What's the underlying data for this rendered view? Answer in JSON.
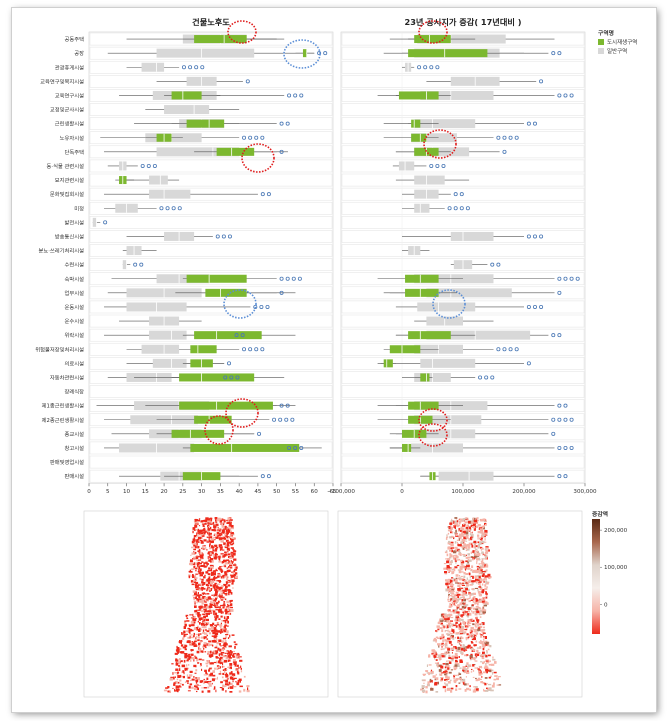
{
  "chart_data": {
    "type": "boxplot",
    "categories": [
      "공동주택",
      "공장",
      "관광휴게시설",
      "교육연구및복지시설",
      "교육연구시설",
      "교정및군사시설",
      "근린생활시설",
      "노유자시설",
      "단독주택",
      "동·식물 관련시설",
      "묘지관련시설",
      "문화및집회시설",
      "미정",
      "발전시설",
      "방송통신시설",
      "분뇨·쓰레기처리시설",
      "수련시설",
      "숙박시설",
      "업무시설",
      "운동시설",
      "운수시설",
      "위락시설",
      "위험물저장및처리시설",
      "의료시설",
      "자동차관련시설",
      "장례식장",
      "제1종근린생활시설",
      "제2종근린생활시설",
      "종교시설",
      "창고시설",
      "판매및영업시설",
      "판매시설"
    ],
    "legend": {
      "title": "구역명",
      "items": [
        {
          "name": "도시재생구역",
          "color": "#7cb82f"
        },
        {
          "name": "일반구역",
          "color": "#d8d8d8"
        }
      ]
    },
    "panels": [
      {
        "title": "건물노후도",
        "xlim": [
          0,
          65
        ],
        "ticks": [
          "0",
          "5",
          "10",
          "15",
          "20",
          "25",
          "30",
          "35",
          "40",
          "45",
          "50",
          "55",
          "60",
          "65"
        ],
        "series": [
          {
            "name": "일반구역",
            "values": [
              [
                10,
                25,
                35,
                42,
                52
              ],
              [
                5,
                18,
                30,
                44,
                60
              ],
              [
                10,
                14,
                18,
                20,
                24
              ],
              [
                18,
                26,
                30,
                34,
                41
              ],
              [
                8,
                17,
                25,
                34,
                52
              ],
              [
                15,
                20,
                28,
                32,
                40
              ],
              [
                12,
                24,
                30,
                36,
                50
              ],
              [
                3,
                15,
                22,
                30,
                40
              ],
              [
                4,
                18,
                33,
                40,
                50
              ],
              [
                5,
                8,
                9,
                10,
                13
              ],
              [
                8,
                16,
                19,
                21,
                24
              ],
              [
                4,
                16,
                20,
                27,
                45
              ],
              [
                4,
                7,
                10,
                13,
                18
              ],
              [
                1,
                1,
                2,
                2,
                3
              ],
              [
                10,
                20,
                24,
                28,
                33
              ],
              [
                9,
                10,
                12,
                14,
                18
              ],
              [
                9,
                9,
                10,
                10,
                11
              ],
              [
                6,
                18,
                24,
                32,
                50
              ],
              [
                5,
                10,
                20,
                30,
                50
              ],
              [
                4,
                10,
                18,
                26,
                43
              ],
              [
                8,
                16,
                20,
                24,
                30
              ],
              [
                4,
                16,
                22,
                26,
                38
              ],
              [
                10,
                14,
                20,
                24,
                40
              ],
              [
                10,
                17,
                22,
                26,
                36
              ],
              [
                5,
                10,
                18,
                22,
                35
              ],
              [
                0,
                0,
                0,
                0,
                0
              ],
              [
                2,
                12,
                24,
                32,
                50
              ],
              [
                4,
                11,
                22,
                29,
                48
              ],
              [
                6,
                16,
                24,
                30,
                44
              ],
              [
                4,
                8,
                18,
                28,
                52
              ],
              [
                0,
                0,
                0,
                0,
                0
              ],
              [
                8,
                19,
                24,
                30,
                45
              ]
            ]
          },
          {
            "name": "도시재생구역",
            "values": [
              [
                25,
                28,
                36,
                42,
                50
              ],
              [
                55,
                57,
                58,
                58,
                60
              ],
              [
                0,
                0,
                0,
                0,
                0
              ],
              [
                0,
                0,
                0,
                0,
                0
              ],
              [
                20,
                22,
                25,
                30,
                35
              ],
              [
                0,
                0,
                0,
                0,
                0
              ],
              [
                22,
                26,
                32,
                36,
                40
              ],
              [
                15,
                18,
                20,
                22,
                25
              ],
              [
                28,
                34,
                38,
                44,
                53
              ],
              [
                0,
                0,
                0,
                0,
                0
              ],
              [
                7,
                8,
                9,
                10,
                12
              ],
              [
                0,
                0,
                0,
                0,
                0
              ],
              [
                0,
                0,
                0,
                0,
                0
              ],
              [
                0,
                0,
                0,
                0,
                0
              ],
              [
                0,
                0,
                0,
                0,
                0
              ],
              [
                0,
                0,
                0,
                0,
                0
              ],
              [
                0,
                0,
                0,
                0,
                0
              ],
              [
                25,
                26,
                32,
                42,
                46
              ],
              [
                23,
                31,
                35,
                42,
                55
              ],
              [
                0,
                0,
                0,
                0,
                0
              ],
              [
                0,
                0,
                0,
                0,
                0
              ],
              [
                25,
                28,
                34,
                46,
                55
              ],
              [
                25,
                27,
                29,
                34,
                38
              ],
              [
                25,
                27,
                30,
                33,
                36
              ],
              [
                12,
                24,
                30,
                44,
                52
              ],
              [
                0,
                0,
                0,
                0,
                0
              ],
              [
                15,
                24,
                34,
                49,
                55
              ],
              [
                18,
                28,
                32,
                38,
                48
              ],
              [
                18,
                22,
                27,
                36,
                44
              ],
              [
                25,
                27,
                38,
                56,
                62
              ],
              [
                0,
                0,
                0,
                0,
                0
              ],
              [
                20,
                25,
                30,
                35,
                40
              ]
            ]
          }
        ]
      },
      {
        "title": "23년 공시지가 증감( 17년대비 )",
        "xlim": [
          -100000,
          300000
        ],
        "ticks": [
          "−100,000",
          "0",
          "100,000",
          "200,000",
          "300,000"
        ],
        "series": [
          {
            "name": "일반구역",
            "values": [
              [
                -20000,
                25000,
                80000,
                170000,
                250000
              ],
              [
                -30000,
                20000,
                70000,
                160000,
                240000
              ],
              [
                0,
                5000,
                10000,
                15000,
                20000
              ],
              [
                40000,
                80000,
                120000,
                160000,
                220000
              ],
              [
                -40000,
                30000,
                80000,
                150000,
                250000
              ],
              [
                0,
                0,
                0,
                0,
                0
              ],
              [
                -30000,
                20000,
                50000,
                120000,
                200000
              ],
              [
                -30000,
                15000,
                40000,
                90000,
                150000
              ],
              [
                -10000,
                20000,
                50000,
                110000,
                160000
              ],
              [
                -15000,
                -5000,
                5000,
                20000,
                40000
              ],
              [
                -10000,
                20000,
                40000,
                70000,
                110000
              ],
              [
                0,
                20000,
                40000,
                60000,
                80000
              ],
              [
                0,
                20000,
                30000,
                45000,
                70000
              ],
              [
                0,
                0,
                0,
                0,
                0
              ],
              [
                0,
                80000,
                100000,
                150000,
                200000
              ],
              [
                0,
                10000,
                20000,
                30000,
                45000
              ],
              [
                80000,
                85000,
                100000,
                115000,
                140000
              ],
              [
                -30000,
                20000,
                80000,
                150000,
                250000
              ],
              [
                -20000,
                40000,
                80000,
                180000,
                250000
              ],
              [
                -10000,
                25000,
                60000,
                120000,
                200000
              ],
              [
                20000,
                40000,
                70000,
                100000,
                150000
              ],
              [
                -10000,
                40000,
                120000,
                210000,
                240000
              ],
              [
                -20000,
                20000,
                60000,
                100000,
                150000
              ],
              [
                -40000,
                30000,
                50000,
                120000,
                200000
              ],
              [
                0,
                20000,
                50000,
                80000,
                120000
              ],
              [
                0,
                0,
                0,
                0,
                0
              ],
              [
                -40000,
                20000,
                80000,
                140000,
                250000
              ],
              [
                -40000,
                20000,
                80000,
                130000,
                240000
              ],
              [
                -10000,
                20000,
                80000,
                120000,
                240000
              ],
              [
                -20000,
                15000,
                50000,
                100000,
                250000
              ],
              [
                0,
                0,
                0,
                0,
                0
              ],
              [
                30000,
                60000,
                110000,
                150000,
                250000
              ]
            ]
          },
          {
            "name": "도시재생구역",
            "values": [
              [
                10000,
                20000,
                45000,
                80000,
                120000
              ],
              [
                0,
                10000,
                70000,
                140000,
                200000
              ],
              [
                0,
                0,
                0,
                0,
                0
              ],
              [
                0,
                0,
                0,
                0,
                0
              ],
              [
                -10000,
                -5000,
                40000,
                60000,
                80000
              ],
              [
                0,
                0,
                0,
                0,
                0
              ],
              [
                10000,
                15000,
                20000,
                30000,
                60000
              ],
              [
                0,
                15000,
                30000,
                40000,
                60000
              ],
              [
                -10000,
                20000,
                40000,
                60000,
                80000
              ],
              [
                0,
                0,
                0,
                0,
                0
              ],
              [
                0,
                0,
                0,
                0,
                0
              ],
              [
                0,
                0,
                0,
                0,
                0
              ],
              [
                0,
                0,
                0,
                0,
                0
              ],
              [
                0,
                0,
                0,
                0,
                0
              ],
              [
                0,
                0,
                0,
                0,
                0
              ],
              [
                0,
                0,
                0,
                0,
                0
              ],
              [
                0,
                0,
                0,
                0,
                0
              ],
              [
                -40000,
                5000,
                30000,
                60000,
                100000
              ],
              [
                -30000,
                5000,
                30000,
                60000,
                90000
              ],
              [
                0,
                0,
                0,
                0,
                0
              ],
              [
                0,
                0,
                0,
                0,
                0
              ],
              [
                -10000,
                10000,
                30000,
                80000,
                120000
              ],
              [
                -30000,
                -20000,
                0,
                30000,
                60000
              ],
              [
                -35000,
                -30000,
                -25000,
                -15000,
                -10000
              ],
              [
                20000,
                30000,
                40000,
                45000,
                50000
              ],
              [
                0,
                0,
                0,
                0,
                0
              ],
              [
                -10000,
                10000,
                30000,
                60000,
                100000
              ],
              [
                -20000,
                10000,
                30000,
                50000,
                80000
              ],
              [
                -20000,
                0,
                20000,
                40000,
                60000
              ],
              [
                -20000,
                0,
                10000,
                15000,
                30000
              ],
              [
                0,
                0,
                0,
                0,
                0
              ],
              [
                30000,
                45000,
                50000,
                55000,
                60000
              ]
            ]
          }
        ]
      }
    ],
    "maps": {
      "legend_title": "증감액",
      "legend_ticks": [
        "200,000",
        "100,000",
        "0"
      ],
      "scale_range": [
        -80000,
        230000
      ],
      "colors": [
        "#ee2a1b",
        "#f6b3a7",
        "#f5eeea",
        "#d8c4b8",
        "#a8674d",
        "#5a2a14"
      ]
    }
  }
}
